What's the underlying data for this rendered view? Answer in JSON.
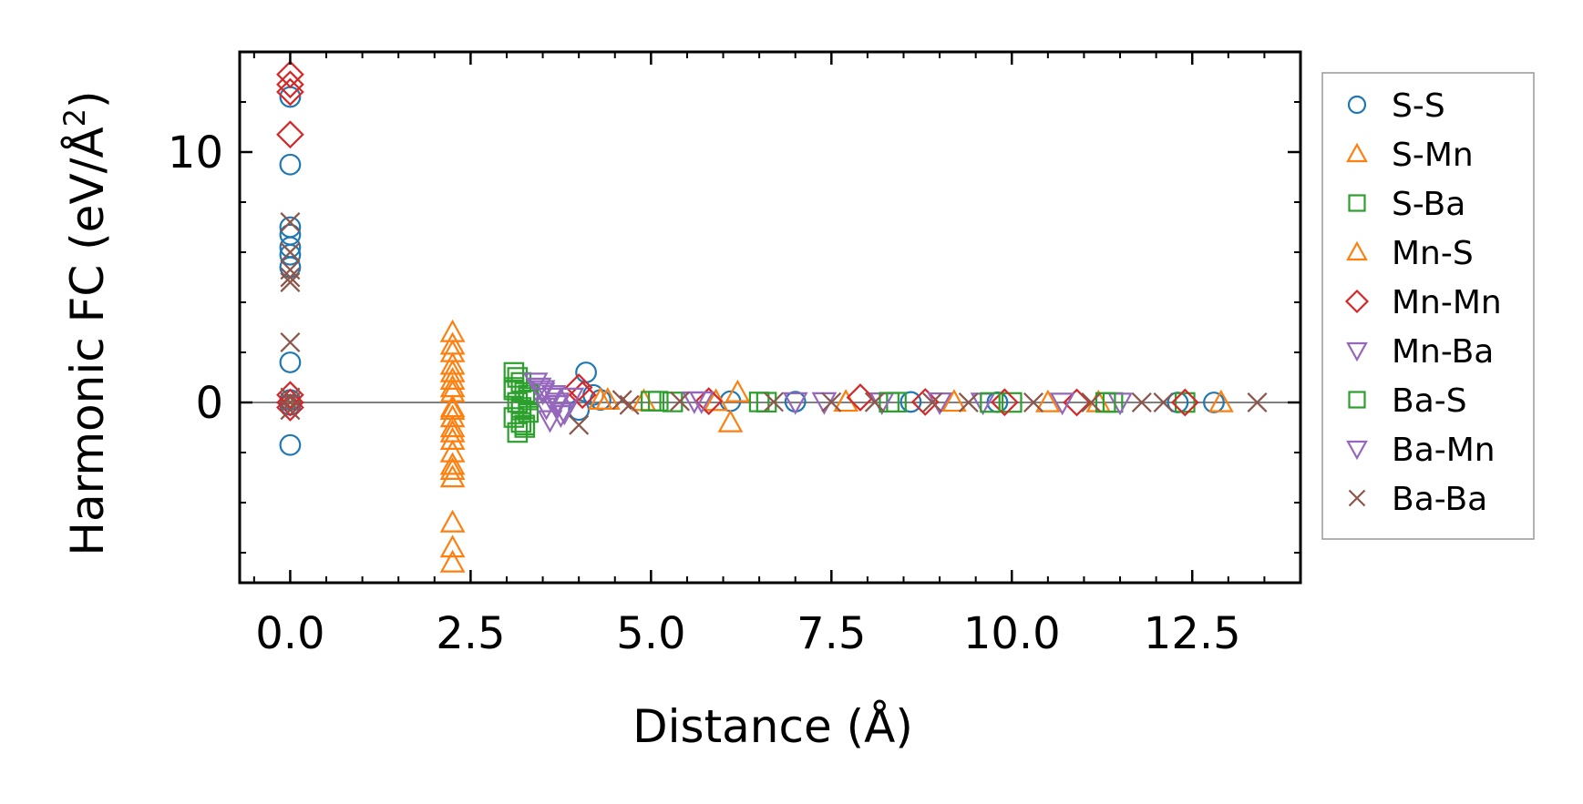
{
  "chart_data": {
    "type": "scatter",
    "xlabel": "Distance (Å)",
    "ylabel_main": "Harmonic FC (eV/Å",
    "ylabel_sup": "2",
    "ylabel_close": ")",
    "xlim": [
      -0.7,
      14.0
    ],
    "ylim": [
      -7.2,
      14.0
    ],
    "xticks": [
      0.0,
      2.5,
      5.0,
      7.5,
      10.0,
      12.5
    ],
    "xtick_labels": [
      "0.0",
      "2.5",
      "5.0",
      "7.5",
      "10.0",
      "12.5"
    ],
    "yticks": [
      0,
      10
    ],
    "ytick_labels": [
      "0",
      "10"
    ],
    "xminor_step": 0.5,
    "yminor_step": 2,
    "zero_line": 0,
    "legend_position": "right-outside",
    "series": [
      {
        "name": "S-S",
        "marker": "circle",
        "color": "#1f77b4",
        "x": [
          0,
          0,
          0,
          0,
          0,
          0,
          0,
          0,
          0,
          0,
          0,
          4.1,
          4.0,
          4.2,
          4.3,
          6.1,
          7.0,
          8.6,
          9.8,
          12.3,
          12.8
        ],
        "y": [
          12.2,
          9.5,
          7.0,
          6.7,
          6.2,
          5.9,
          5.4,
          1.6,
          -1.7,
          0.1,
          -0.1,
          1.2,
          -0.3,
          0.3,
          0.1,
          0.05,
          0.03,
          0.02,
          0.01,
          0,
          0
        ]
      },
      {
        "name": "S-Mn",
        "marker": "triangle-up",
        "color": "#ff7f0e",
        "x": [
          2.25,
          2.25,
          2.25,
          2.25,
          2.25,
          2.25,
          2.25,
          2.25,
          2.25,
          2.25,
          2.25,
          2.25,
          2.25,
          2.25,
          2.25,
          2.25,
          2.25,
          4.3,
          4.9,
          6.1,
          6.2,
          9.2,
          11.2,
          12.9
        ],
        "y": [
          2.8,
          2.3,
          2.0,
          1.2,
          0.9,
          0.6,
          0.4,
          -0.3,
          -0.6,
          -1.0,
          -1.5,
          -2.0,
          -2.5,
          -3.0,
          -4.8,
          -5.8,
          -6.4,
          0.1,
          0.05,
          -0.8,
          0.4,
          0.02,
          0,
          0
        ]
      },
      {
        "name": "S-Ba",
        "marker": "square",
        "color": "#2ca02c",
        "x": [
          3.1,
          3.15,
          3.2,
          3.1,
          3.25,
          3.3,
          3.15,
          3.2,
          3.3,
          3.1,
          3.2,
          3.25,
          3.15,
          3.3,
          5.0,
          5.3,
          6.6,
          8.4,
          10.0,
          11.4,
          12.4
        ],
        "y": [
          1.2,
          1.0,
          0.8,
          0.6,
          0.4,
          0.2,
          0,
          -0.2,
          -0.4,
          -0.6,
          -0.8,
          -1.0,
          -1.2,
          0.3,
          0.05,
          0.02,
          0.01,
          0.01,
          0,
          0,
          0
        ]
      },
      {
        "name": "Mn-S",
        "marker": "triangle-up",
        "color": "#ff7f0e",
        "x": [
          2.25,
          2.25,
          2.25,
          2.25,
          4.4,
          5.9,
          7.7,
          10.5
        ],
        "y": [
          1.5,
          -0.2,
          -1.2,
          -2.7,
          0.1,
          0.05,
          0.02,
          0
        ]
      },
      {
        "name": "Mn-Mn",
        "marker": "diamond",
        "color": "#d62728",
        "x": [
          0,
          0,
          0,
          0,
          0,
          0,
          0,
          4.0,
          4.05,
          5.8,
          7.9,
          8.8,
          9.9,
          10.9,
          12.4
        ],
        "y": [
          13.1,
          12.7,
          12.4,
          10.7,
          0.3,
          0,
          -0.2,
          0.6,
          0.3,
          0.05,
          0.2,
          0.02,
          0.01,
          0,
          0
        ]
      },
      {
        "name": "Mn-Ba",
        "marker": "triangle-down",
        "color": "#9467bd",
        "x": [
          3.4,
          3.5,
          3.6,
          3.7,
          3.8,
          3.6,
          3.5,
          3.7,
          3.9,
          5.6,
          7.0,
          8.2,
          9.6,
          11.5
        ],
        "y": [
          0.8,
          0.5,
          0.2,
          -0.1,
          -0.4,
          -0.7,
          0.4,
          0,
          0.2,
          0.05,
          0.02,
          0.01,
          0,
          0
        ]
      },
      {
        "name": "Ba-S",
        "marker": "square",
        "color": "#2ca02c",
        "x": [
          3.1,
          3.2,
          3.3,
          3.25,
          5.1,
          6.5,
          8.3,
          9.7,
          11.3
        ],
        "y": [
          0.5,
          -0.3,
          0.1,
          -0.9,
          0.05,
          0.02,
          0.01,
          0,
          0
        ]
      },
      {
        "name": "Ba-Mn",
        "marker": "triangle-down",
        "color": "#9467bd",
        "x": [
          3.45,
          3.55,
          3.65,
          3.75,
          5.7,
          7.4,
          9.0,
          10.7
        ],
        "y": [
          0.6,
          -0.2,
          0.3,
          -0.5,
          0.05,
          0.02,
          0.01,
          0
        ]
      },
      {
        "name": "Ba-Ba",
        "marker": "x",
        "color": "#8c564b",
        "x": [
          0,
          0,
          0,
          0,
          0,
          0,
          0,
          0,
          0,
          4.0,
          4.6,
          4.7,
          5.4,
          6.7,
          7.5,
          8.1,
          8.9,
          9.4,
          10.3,
          11.1,
          11.8,
          12.1,
          13.4
        ],
        "y": [
          7.2,
          6.0,
          5.3,
          5.0,
          4.8,
          2.4,
          0.2,
          0,
          -0.3,
          -0.9,
          0.1,
          -0.1,
          0.05,
          0.02,
          0.01,
          0.01,
          0,
          0,
          0,
          0,
          0,
          0,
          0
        ]
      }
    ]
  }
}
